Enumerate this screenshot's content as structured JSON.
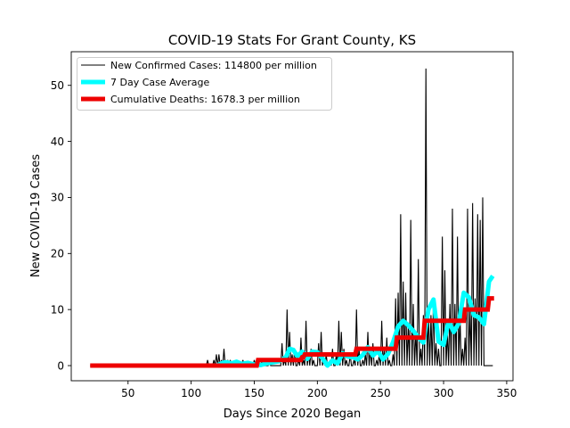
{
  "chart_data": {
    "type": "line",
    "title": "COVID-19 Stats For Grant County, KS",
    "xlabel": "Days Since 2020 Began",
    "ylabel": "New COVID-19 Cases",
    "xlim": [
      5,
      355
    ],
    "ylim": [
      -2.7,
      56
    ],
    "xticks": [
      50,
      100,
      150,
      200,
      250,
      300,
      350
    ],
    "yticks": [
      0,
      10,
      20,
      30,
      40,
      50
    ],
    "grid": false,
    "legend_position": "top-left",
    "series": [
      {
        "name": "New Confirmed Cases: 114800 per million",
        "color": "#000000",
        "x": [
          20,
          112,
          113,
          114,
          115,
          116,
          117,
          118,
          119,
          120,
          121,
          122,
          123,
          124,
          125,
          126,
          127,
          128,
          129,
          130,
          131,
          132,
          133,
          134,
          135,
          136,
          137,
          138,
          139,
          140,
          141,
          142,
          143,
          144,
          145,
          146,
          147,
          148,
          149,
          150,
          151,
          152,
          153,
          154,
          155,
          156,
          157,
          158,
          159,
          160,
          161,
          162,
          163,
          164,
          165,
          166,
          167,
          168,
          169,
          170,
          171,
          172,
          173,
          174,
          175,
          176,
          177,
          178,
          179,
          180,
          181,
          182,
          183,
          184,
          185,
          186,
          187,
          188,
          189,
          190,
          191,
          192,
          193,
          194,
          195,
          196,
          197,
          198,
          199,
          200,
          201,
          202,
          203,
          204,
          205,
          206,
          207,
          208,
          209,
          210,
          211,
          212,
          213,
          214,
          215,
          216,
          217,
          218,
          219,
          220,
          221,
          222,
          223,
          224,
          225,
          226,
          227,
          228,
          229,
          230,
          231,
          232,
          233,
          234,
          235,
          236,
          237,
          238,
          239,
          240,
          241,
          242,
          243,
          244,
          245,
          246,
          247,
          248,
          249,
          250,
          251,
          252,
          253,
          254,
          255,
          256,
          257,
          258,
          259,
          260,
          261,
          262,
          263,
          264,
          265,
          266,
          267,
          268,
          269,
          270,
          271,
          272,
          273,
          274,
          275,
          276,
          277,
          278,
          279,
          280,
          281,
          282,
          283,
          284,
          285,
          286,
          287,
          288,
          289,
          290,
          291,
          292,
          293,
          294,
          295,
          296,
          297,
          298,
          299,
          300,
          301,
          302,
          303,
          304,
          305,
          306,
          307,
          308,
          309,
          310,
          311,
          312,
          313,
          314,
          315,
          316,
          317,
          318,
          319,
          320,
          321,
          322,
          323,
          324,
          325,
          326,
          327,
          328,
          329,
          330,
          331,
          332,
          333,
          334,
          335,
          336,
          337,
          338,
          339
        ],
        "values": [
          0,
          0,
          1,
          0,
          0,
          0,
          0,
          1,
          0,
          2,
          0,
          2,
          0,
          1,
          0,
          3,
          0,
          0,
          1,
          0,
          1,
          0,
          0,
          0,
          0,
          1,
          0,
          0,
          0,
          0,
          1,
          0,
          0,
          0,
          0,
          0,
          0,
          0,
          0,
          1,
          0,
          0,
          0,
          0,
          0,
          1,
          0,
          0,
          0,
          0,
          0,
          1,
          0,
          0,
          0,
          0,
          0,
          0,
          0,
          0,
          0,
          4,
          0,
          1,
          0,
          10,
          0,
          6,
          0,
          2,
          0,
          3,
          0,
          0,
          1,
          0,
          5,
          0,
          1,
          0,
          8,
          0,
          2,
          0,
          3,
          0,
          1,
          0,
          0,
          0,
          4,
          0,
          6,
          0,
          1,
          0,
          2,
          0,
          0,
          1,
          0,
          3,
          0,
          0,
          2,
          0,
          8,
          0,
          6,
          0,
          3,
          0,
          1,
          0,
          0,
          2,
          0,
          0,
          1,
          0,
          10,
          0,
          3,
          0,
          0,
          1,
          0,
          2,
          0,
          6,
          0,
          3,
          0,
          4,
          0,
          0,
          1,
          0,
          2,
          0,
          8,
          0,
          3,
          0,
          5,
          0,
          1,
          0,
          0,
          2,
          0,
          12,
          0,
          13,
          0,
          27,
          0,
          15,
          0,
          13,
          0,
          7,
          0,
          26,
          0,
          11,
          0,
          6,
          0,
          19,
          0,
          3,
          0,
          9,
          0,
          53,
          0,
          10,
          0,
          9,
          0,
          12,
          0,
          4,
          0,
          3,
          0,
          0,
          23,
          0,
          17,
          0,
          6,
          0,
          11,
          0,
          28,
          0,
          11,
          0,
          23,
          0,
          9,
          0,
          3,
          0,
          5,
          0,
          28,
          0,
          10,
          0,
          29,
          0,
          12,
          0,
          27,
          0,
          26,
          0,
          30,
          0,
          0,
          0,
          0,
          0,
          0,
          0,
          0
        ]
      },
      {
        "name": "7 Day Case Average",
        "color": "#00ffff",
        "x": [
          120,
          125,
          128,
          132,
          136,
          140,
          145,
          150,
          155,
          160,
          165,
          170,
          175,
          178,
          181,
          184,
          188,
          192,
          196,
          200,
          204,
          208,
          212,
          216,
          220,
          224,
          228,
          232,
          236,
          240,
          244,
          248,
          252,
          256,
          260,
          264,
          268,
          272,
          276,
          280,
          284,
          288,
          292,
          296,
          300,
          304,
          308,
          312,
          316,
          320,
          324,
          328,
          332,
          336,
          339
        ],
        "values": [
          0,
          0.5,
          0.6,
          0.4,
          0.7,
          0.3,
          0.5,
          0.2,
          0.1,
          0.4,
          0.6,
          0.8,
          1.5,
          3,
          2.8,
          1.7,
          2.5,
          1.2,
          2.5,
          2.4,
          1.3,
          0,
          0.9,
          0.4,
          2.2,
          1.6,
          1.5,
          1.1,
          1.9,
          3.3,
          1.8,
          2.6,
          1.1,
          2.1,
          4.2,
          7,
          8,
          7.2,
          6.2,
          5,
          4.1,
          10,
          11.8,
          4.3,
          3.7,
          8,
          6,
          7.5,
          13,
          12.2,
          9,
          8.6,
          7.4,
          15,
          16
        ]
      },
      {
        "name": "Cumulative Deaths: 1678.3 per million",
        "color": "#ee0000",
        "x": [
          20,
          152,
          153,
          187,
          188,
          189,
          190,
          230,
          231,
          262,
          263,
          284,
          285,
          316,
          317,
          335,
          336,
          340
        ],
        "values": [
          0,
          0,
          1,
          1,
          1.5,
          1.5,
          2,
          2,
          3,
          3,
          5,
          5,
          8,
          8,
          10,
          10,
          12,
          12
        ]
      }
    ]
  }
}
